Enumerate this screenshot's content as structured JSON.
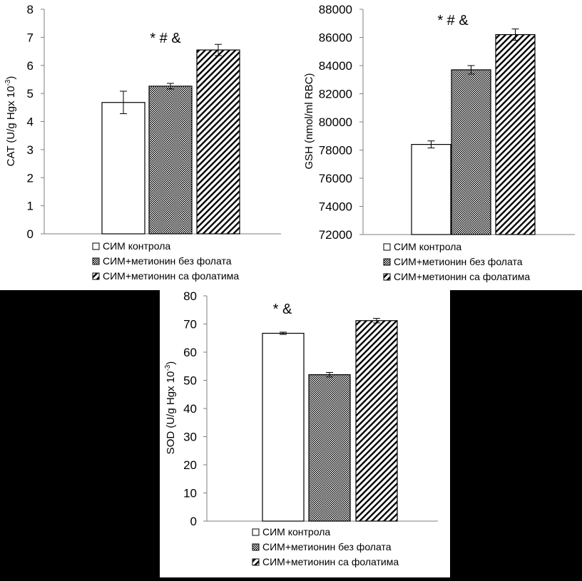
{
  "legend": [
    "СИМ контрола",
    "СИМ+метионин без фолата",
    "СИМ+метионин са фолатима"
  ],
  "chart_data": [
    {
      "type": "bar",
      "ylabel_main": "CAT (U/g Hgx 10",
      "ylabel_sup": "-3",
      "ylabel_end": ")",
      "ylim": [
        0,
        8
      ],
      "ticks": [
        "0",
        "1",
        "2",
        "3",
        "4",
        "5",
        "6",
        "7",
        "8"
      ],
      "annotation": "* # &",
      "series": [
        {
          "name": "СИМ контрола",
          "value": 4.68,
          "error": 0.4
        },
        {
          "name": "СИМ+метионин без фолата",
          "value": 5.26,
          "error": 0.1
        },
        {
          "name": "СИМ+метионин са фолатима",
          "value": 6.55,
          "error": 0.2
        }
      ]
    },
    {
      "type": "bar",
      "ylabel_main": "GSH (nmol/ml RBC)",
      "ylabel_sup": "",
      "ylabel_end": "",
      "ylim": [
        72000,
        88000
      ],
      "ticks": [
        "72000",
        "74000",
        "76000",
        "78000",
        "80000",
        "82000",
        "84000",
        "86000",
        "88000"
      ],
      "annotation": "* # &",
      "series": [
        {
          "name": "СИМ контрола",
          "value": 78400,
          "error": 250
        },
        {
          "name": "СИМ+метионин без фолата",
          "value": 83700,
          "error": 300
        },
        {
          "name": "СИМ+метионин са фолатима",
          "value": 86200,
          "error": 400
        }
      ]
    },
    {
      "type": "bar",
      "ylabel_main": "SOD (U/g Hgx 10",
      "ylabel_sup": "-3",
      "ylabel_end": ")",
      "ylim": [
        0,
        80
      ],
      "ticks": [
        "0",
        "10",
        "20",
        "30",
        "40",
        "50",
        "60",
        "70",
        "80"
      ],
      "annotation": "* &",
      "series": [
        {
          "name": "СИМ контрола",
          "value": 66.7,
          "error": 0.4
        },
        {
          "name": "СИМ+метионин без фолата",
          "value": 52.0,
          "error": 0.8
        },
        {
          "name": "СИМ+метионин са фолатима",
          "value": 71.2,
          "error": 0.8
        }
      ]
    }
  ]
}
